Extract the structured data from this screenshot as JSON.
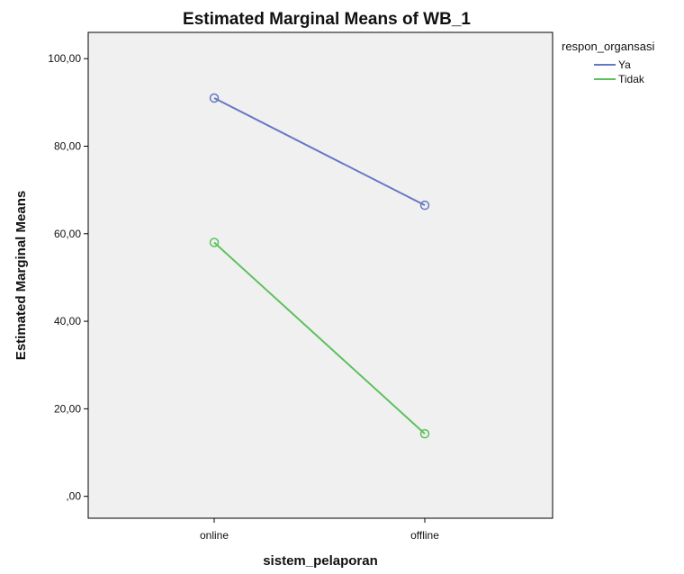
{
  "chart_data": {
    "type": "line",
    "title": "Estimated Marginal Means of WB_1",
    "xlabel": "sistem_pelaporan",
    "ylabel": "Estimated Marginal Means",
    "categories": [
      "online",
      "offline"
    ],
    "ylim": [
      -5,
      106
    ],
    "yticks": [
      0,
      20,
      40,
      60,
      80,
      100
    ],
    "ytick_labels": [
      ",00",
      "20,00",
      "40,00",
      "60,00",
      "80,00",
      "100,00"
    ],
    "grid": false,
    "legend": {
      "title": "respon_organsasi",
      "position": "right"
    },
    "series": [
      {
        "name": "Ya",
        "color": "#6677c4",
        "values": [
          91,
          66.5
        ]
      },
      {
        "name": "Tidak",
        "color": "#5cc15c",
        "values": [
          58,
          14.3
        ]
      }
    ],
    "plot_background": "#f0f0f0"
  }
}
